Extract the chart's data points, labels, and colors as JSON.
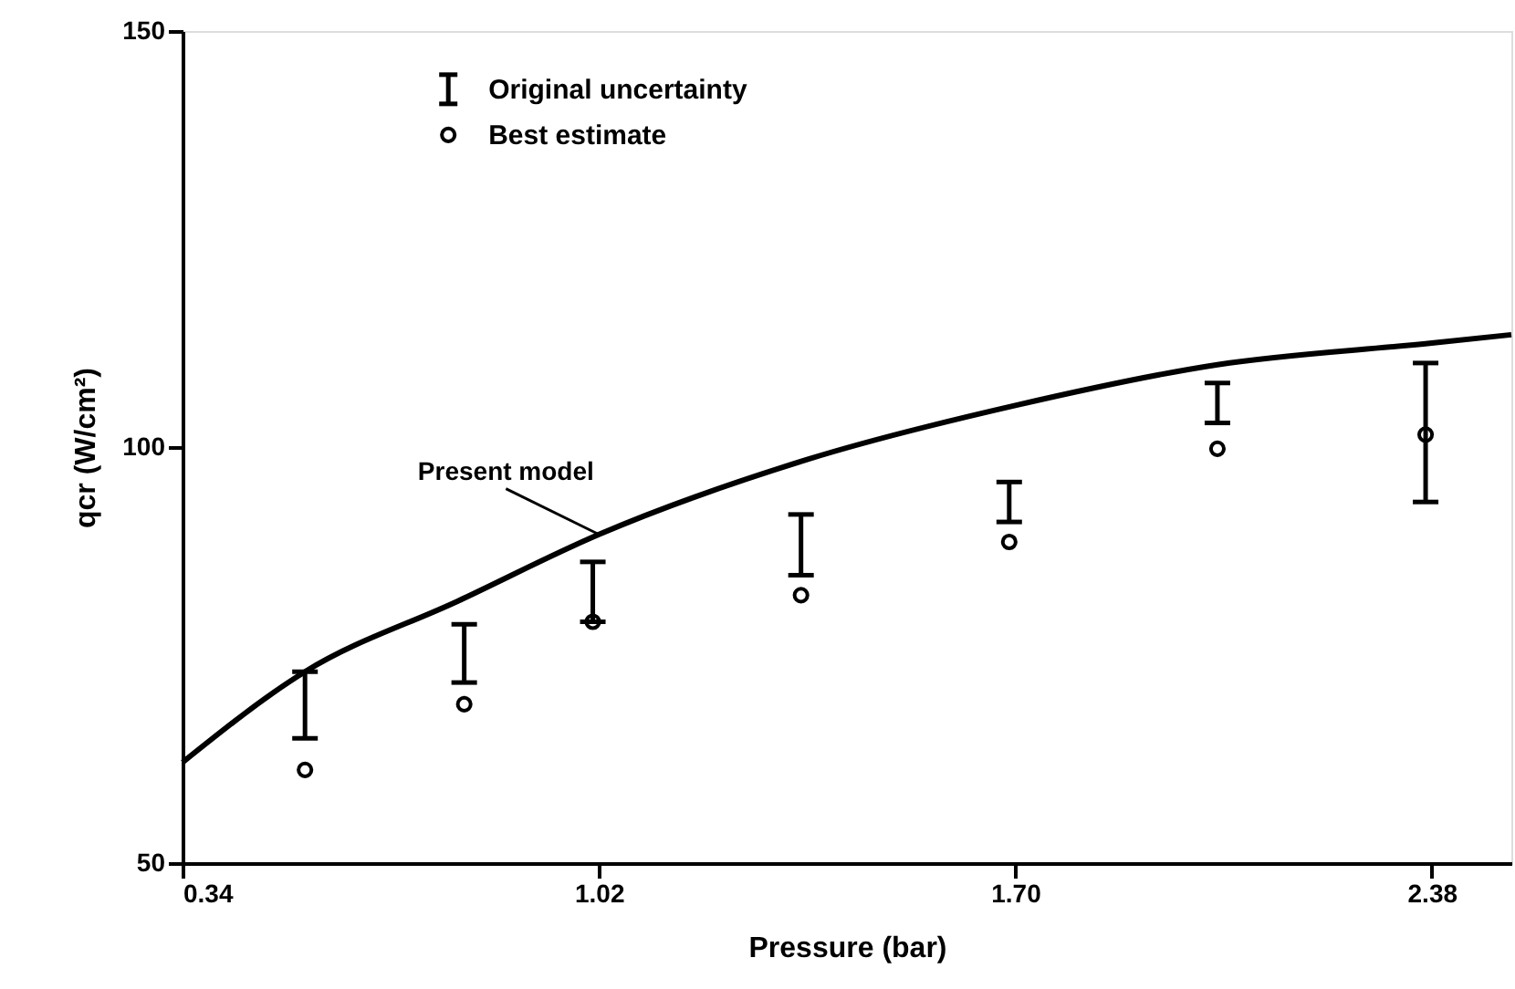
{
  "chart_data": {
    "type": "scatter",
    "xlabel": "Pressure (bar)",
    "ylabel": "qcr (W/cm²)",
    "xlim": [
      0.34,
      2.51
    ],
    "xticks": [
      {
        "value": 0.34,
        "label": "0.34"
      },
      {
        "value": 1.02,
        "label": "1.02"
      },
      {
        "value": 1.7,
        "label": "1.70"
      },
      {
        "value": 2.38,
        "label": "2.38"
      }
    ],
    "ylim": [
      50,
      150
    ],
    "yticks": [
      50,
      100,
      150
    ],
    "grid": false,
    "legend": "top left",
    "annotations": [
      "Original uncertainty"
    ],
    "series": [
      {
        "name": "Best estimate",
        "marker": "circle",
        "color": "#000000",
        "x": [
          0.54,
          0.8,
          1.01,
          1.35,
          1.69,
          2.03,
          2.37
        ],
        "values": [
          61.2,
          69.1,
          79.0,
          82.2,
          88.6,
          99.8,
          101.5
        ],
        "errors": [
          [
            65.0,
            73.0
          ],
          [
            71.7,
            78.7
          ],
          [
            79.0,
            86.2
          ],
          [
            84.6,
            91.9
          ],
          [
            91.0,
            95.8
          ],
          [
            102.9,
            107.7
          ],
          [
            93.4,
            110.1
          ]
        ]
      },
      {
        "name": "Present model",
        "type": "line",
        "line_style": "solid",
        "color": "#000000",
        "x": [
          0.34,
          0.54,
          0.79,
          1.02,
          1.36,
          1.7,
          2.03,
          2.38,
          2.51
        ],
        "values": [
          62.1,
          73.0,
          81.5,
          89.5,
          98.5,
          105.0,
          109.9,
          112.5,
          113.5
        ]
      }
    ]
  }
}
